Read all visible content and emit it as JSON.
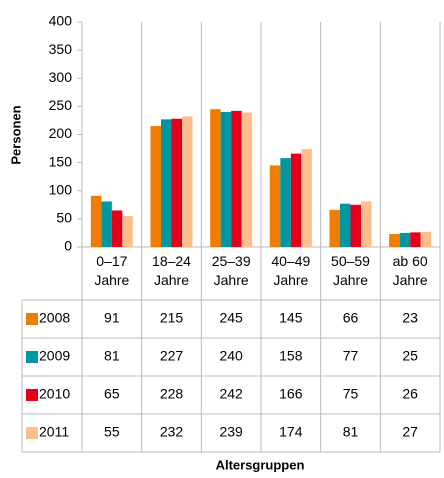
{
  "chart_data": {
    "type": "bar",
    "x_label": "Altersgruppen",
    "y_label": "Personen",
    "categories": [
      "0–17 Jahre",
      "18–24 Jahre",
      "25–39 Jahre",
      "40–49 Jahre",
      "50–59 Jahre",
      "ab 60 Jahre"
    ],
    "series": [
      {
        "name": "2008",
        "color": "#f07c00",
        "values": [
          91,
          215,
          245,
          145,
          66,
          23
        ]
      },
      {
        "name": "2009",
        "color": "#0097a1",
        "values": [
          81,
          227,
          240,
          158,
          77,
          25
        ]
      },
      {
        "name": "2010",
        "color": "#e2001a",
        "values": [
          65,
          228,
          242,
          166,
          75,
          26
        ]
      },
      {
        "name": "2011",
        "color": "#fbbe8c",
        "values": [
          55,
          232,
          239,
          174,
          81,
          27
        ]
      }
    ],
    "ylim": [
      0,
      400
    ],
    "yticks": [
      0,
      50,
      100,
      150,
      200,
      250,
      300,
      350,
      400
    ]
  }
}
